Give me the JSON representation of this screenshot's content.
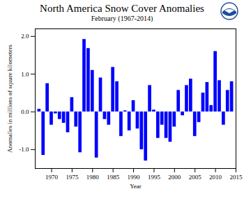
{
  "chart_data": {
    "type": "bar",
    "title": "North America Snow Cover Anomalies",
    "subtitle": "February (1967-2014)",
    "x_label": "Year",
    "y_label": "Anomalies in millions of square kilometers",
    "x": [
      1967,
      1968,
      1969,
      1970,
      1971,
      1972,
      1973,
      1974,
      1975,
      1976,
      1977,
      1978,
      1979,
      1980,
      1981,
      1982,
      1983,
      1984,
      1985,
      1986,
      1987,
      1988,
      1989,
      1990,
      1991,
      1992,
      1993,
      1994,
      1995,
      1996,
      1997,
      1998,
      1999,
      2000,
      2001,
      2002,
      2003,
      2004,
      2005,
      2006,
      2007,
      2008,
      2009,
      2010,
      2011,
      2012,
      2013,
      2014
    ],
    "values": [
      0.07,
      -1.15,
      0.75,
      -0.35,
      -0.05,
      -0.2,
      -0.3,
      -0.55,
      0.38,
      -0.4,
      -1.08,
      1.92,
      1.68,
      1.1,
      -1.22,
      0.9,
      -0.2,
      -0.35,
      1.18,
      0.8,
      -0.65,
      0.03,
      -0.5,
      0.3,
      -0.45,
      -1.0,
      -1.3,
      0.7,
      0.05,
      -0.7,
      -0.35,
      -0.7,
      -0.8,
      -0.4,
      0.57,
      -0.1,
      0.7,
      0.87,
      -0.65,
      -0.28,
      0.5,
      0.78,
      0.17,
      1.6,
      0.83,
      -0.35,
      0.57,
      0.8
    ],
    "color": "#0000ff",
    "xlim": [
      1966,
      2015
    ],
    "xticks": [
      1970,
      1975,
      1980,
      1985,
      1990,
      1995,
      2000,
      2005,
      2010,
      2015
    ],
    "ylim": [
      -1.5,
      2.2
    ],
    "yticks": [
      {
        "value": -1,
        "label": "-1.0"
      },
      {
        "value": 0,
        "label": "0.0"
      },
      {
        "value": 1,
        "label": "1.0"
      },
      {
        "value": 2,
        "label": "2.0"
      }
    ],
    "grid": false
  }
}
